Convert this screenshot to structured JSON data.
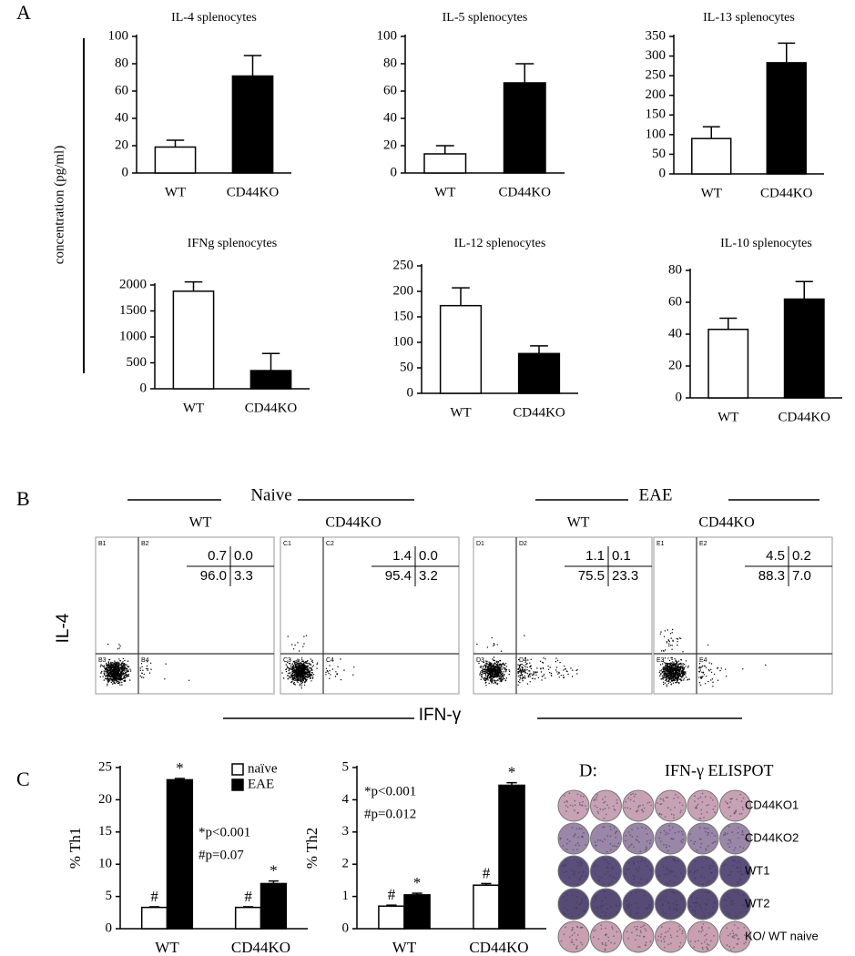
{
  "panels": [
    "A",
    "B",
    "C"
  ],
  "shared_y_label": "concentration (pg/ml)",
  "chart_data": [
    {
      "type": "bar",
      "title": "IL-4 splenocytes",
      "categories": [
        "WT",
        "CD44KO"
      ],
      "values": [
        19,
        71
      ],
      "errors": [
        5,
        15
      ],
      "colors": [
        "#ffffff",
        "#000000"
      ],
      "ylim": [
        0,
        100
      ],
      "yticks": [
        0,
        20,
        40,
        60,
        80,
        100
      ]
    },
    {
      "type": "bar",
      "title": "IL-5 splenocytes",
      "categories": [
        "WT",
        "CD44KO"
      ],
      "values": [
        14,
        66
      ],
      "errors": [
        6,
        14
      ],
      "colors": [
        "#ffffff",
        "#000000"
      ],
      "ylim": [
        0,
        100
      ],
      "yticks": [
        0,
        20,
        40,
        60,
        80,
        100
      ]
    },
    {
      "type": "bar",
      "title": "IL-13 splenocytes",
      "categories": [
        "WT",
        "CD44KO"
      ],
      "values": [
        90,
        283
      ],
      "errors": [
        30,
        50
      ],
      "colors": [
        "#ffffff",
        "#000000"
      ],
      "ylim": [
        0,
        350
      ],
      "yticks": [
        0,
        50,
        100,
        150,
        200,
        250,
        300,
        350
      ]
    },
    {
      "type": "bar",
      "title": "IFNg splenocytes",
      "categories": [
        "WT",
        "CD44KO"
      ],
      "values": [
        1880,
        350
      ],
      "errors": [
        180,
        330
      ],
      "colors": [
        "#ffffff",
        "#000000"
      ],
      "ylim": [
        0,
        2000
      ],
      "yticks": [
        0,
        500,
        1000,
        1500,
        2000
      ]
    },
    {
      "type": "bar",
      "title": "IL-12  splenocytes",
      "categories": [
        "WT",
        "CD44KO"
      ],
      "values": [
        172,
        78
      ],
      "errors": [
        35,
        15
      ],
      "colors": [
        "#ffffff",
        "#000000"
      ],
      "ylim": [
        0,
        250
      ],
      "yticks": [
        0,
        50,
        100,
        150,
        200,
        250
      ]
    },
    {
      "type": "bar",
      "title": "IL-10 splenocytes",
      "categories": [
        "WT",
        "CD44KO"
      ],
      "values": [
        43,
        62
      ],
      "errors": [
        7,
        11
      ],
      "colors": [
        "#ffffff",
        "#000000"
      ],
      "ylim": [
        0,
        80
      ],
      "yticks": [
        0,
        20,
        40,
        60,
        80
      ]
    },
    {
      "type": "grouped_bar",
      "y_label": "% Th1",
      "categories": [
        "WT",
        "CD44KO"
      ],
      "series": [
        {
          "name": "naïve",
          "color": "#ffffff",
          "symbol": "#",
          "values": [
            3.3,
            3.3
          ],
          "errors": [
            0.1,
            0.1
          ]
        },
        {
          "name": "EAE",
          "color": "#000000",
          "symbol": "*",
          "values": [
            23.1,
            7.0
          ],
          "errors": [
            0.2,
            0.4
          ]
        }
      ],
      "legend": "upper right",
      "annotations": [
        "*p<0.001",
        "#p=0.07"
      ],
      "ylim": [
        0,
        25
      ],
      "yticks": [
        0,
        5,
        10,
        15,
        20,
        25
      ]
    },
    {
      "type": "grouped_bar",
      "y_label": "% Th2",
      "categories": [
        "WT",
        "CD44KO"
      ],
      "series": [
        {
          "color": "#ffffff",
          "symbol": "#",
          "values": [
            0.7,
            1.35
          ],
          "errors": [
            0.03,
            0.05
          ]
        },
        {
          "color": "#000000",
          "symbol": "*",
          "values": [
            1.05,
            4.45
          ],
          "errors": [
            0.05,
            0.08
          ]
        }
      ],
      "annotations": [
        "*p<0.001",
        "#p=0.012"
      ],
      "ylim": [
        0,
        5
      ],
      "yticks": [
        0,
        1,
        2,
        3,
        4,
        5
      ]
    }
  ],
  "flow": {
    "y_label": "IL-4",
    "x_label": "IFN-γ",
    "groups": [
      {
        "label": "Naive",
        "plots": [
          {
            "label": "WT",
            "gates": [
              "B1",
              "B2",
              "B3",
              "B4"
            ],
            "values": [
              0.7,
              0,
              96,
              3.3
            ],
            "value_labels": [
              "0.7",
              "0.0",
              "96.0",
              "3.3"
            ]
          },
          {
            "label": "CD44KO",
            "gates": [
              "C1",
              "C2",
              "C3",
              "C4"
            ],
            "values": [
              1.4,
              0,
              95.4,
              3.2
            ],
            "value_labels": [
              "1.4",
              "0.0",
              "95.4",
              "3.2"
            ]
          }
        ]
      },
      {
        "label": "EAE",
        "plots": [
          {
            "label": "WT",
            "gates": [
              "D1",
              "D2",
              "D3",
              "D4"
            ],
            "values": [
              1.1,
              0.1,
              75.5,
              23.3
            ],
            "value_labels": [
              "1.1",
              "0.1",
              "75.5",
              "23.3"
            ]
          },
          {
            "label": "CD44KO",
            "gates": [
              "E1",
              "E2",
              "E3",
              "E4"
            ],
            "values": [
              4.5,
              0.2,
              88.3,
              7
            ],
            "value_labels": [
              "4.5",
              "0.2",
              "88.3",
              "7.0"
            ]
          }
        ]
      }
    ]
  },
  "elispot": {
    "panel": "D:",
    "title": "IFN-γ ELISPOT",
    "wells_per_row": 6,
    "rows": [
      {
        "label": "CD44KO1",
        "color": "#c7a2b4"
      },
      {
        "label": "CD44KO2",
        "color": "#9a86a6"
      },
      {
        "label": "WT1",
        "color": "#5a4f7a"
      },
      {
        "label": "WT2",
        "color": "#564b75"
      },
      {
        "label": "KO/ WT naive",
        "color": "#c9a0b0"
      }
    ]
  }
}
